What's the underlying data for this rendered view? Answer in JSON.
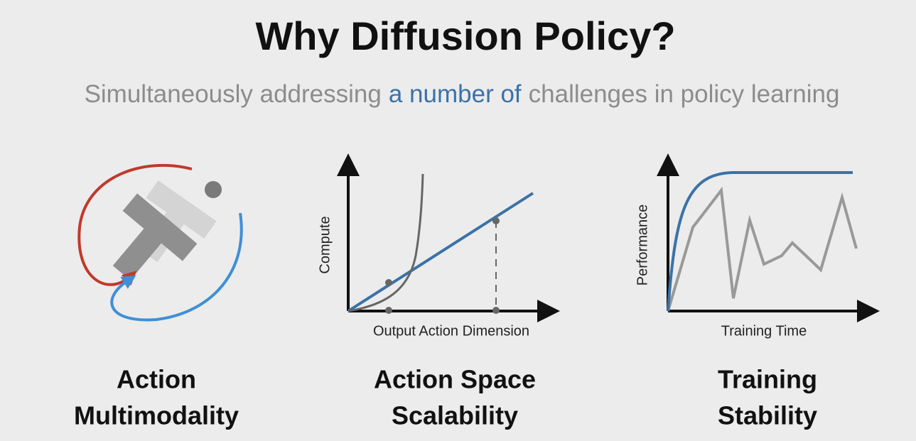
{
  "title": "Why Diffusion Policy?",
  "subtitle": [
    "Simultaneously addressing",
    "a number of",
    "challenges in policy learning"
  ],
  "panels": [
    {
      "caption": [
        "Action",
        "Multimodality"
      ]
    },
    {
      "caption": [
        "Action Space",
        "Scalability"
      ],
      "x_label": "Output Action Dimension",
      "y_label": "Compute"
    },
    {
      "caption": [
        "Training",
        "Stability"
      ],
      "x_label": "Training Time",
      "y_label": "Performance"
    }
  ]
}
